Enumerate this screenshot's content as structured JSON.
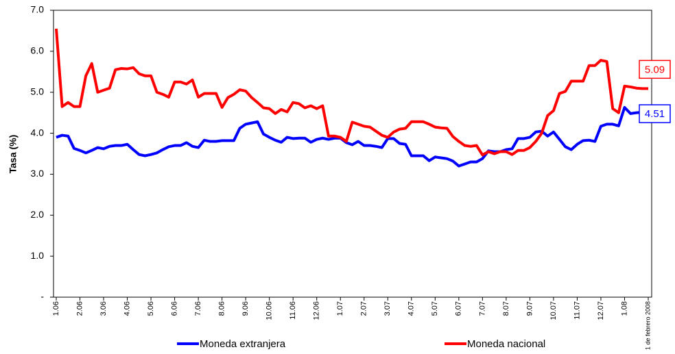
{
  "chart_data": {
    "type": "line",
    "y_label": "Tasa (%)",
    "categories": [
      "1.06",
      null,
      null,
      null,
      "2.06",
      null,
      null,
      null,
      "3.06",
      null,
      null,
      null,
      "4.06",
      null,
      null,
      null,
      "5.06",
      null,
      null,
      null,
      "6.06",
      null,
      null,
      null,
      "7.06",
      null,
      null,
      null,
      "8.06",
      null,
      null,
      null,
      "9.06",
      null,
      null,
      null,
      "10.06",
      null,
      null,
      null,
      "11.06",
      null,
      null,
      null,
      "12.06",
      null,
      null,
      null,
      "1.07",
      null,
      null,
      null,
      "2.07",
      null,
      null,
      null,
      "3.07",
      null,
      null,
      null,
      "4.07",
      null,
      null,
      null,
      "5.07",
      null,
      null,
      null,
      "6.07",
      null,
      null,
      null,
      "7.07",
      null,
      null,
      null,
      "8.07",
      null,
      null,
      null,
      "9.07",
      null,
      null,
      null,
      "10.07",
      null,
      null,
      null,
      "11.07",
      null,
      null,
      null,
      "12.07",
      null,
      null,
      null,
      "1.08",
      null,
      null,
      null,
      "1 de febrero 2008"
    ],
    "series": [
      {
        "name": "Moneda extranjera",
        "color": "#0000ff",
        "values": [
          3.9,
          3.95,
          3.93,
          3.63,
          3.58,
          3.52,
          3.58,
          3.65,
          3.62,
          3.68,
          3.7,
          3.7,
          3.73,
          3.6,
          3.48,
          3.45,
          3.48,
          3.52,
          3.6,
          3.67,
          3.7,
          3.7,
          3.77,
          3.68,
          3.65,
          3.83,
          3.8,
          3.8,
          3.82,
          3.82,
          3.82,
          4.12,
          4.22,
          4.25,
          4.28,
          3.98,
          3.9,
          3.83,
          3.78,
          3.9,
          3.87,
          3.88,
          3.88,
          3.78,
          3.85,
          3.88,
          3.85,
          3.88,
          3.88,
          3.77,
          3.72,
          3.8,
          3.7,
          3.7,
          3.68,
          3.65,
          3.87,
          3.87,
          3.75,
          3.73,
          3.45,
          3.45,
          3.45,
          3.33,
          3.42,
          3.4,
          3.38,
          3.32,
          3.2,
          3.25,
          3.3,
          3.3,
          3.38,
          3.57,
          3.55,
          3.55,
          3.6,
          3.62,
          3.87,
          3.87,
          3.9,
          4.03,
          4.05,
          3.93,
          4.03,
          3.85,
          3.67,
          3.6,
          3.73,
          3.82,
          3.83,
          3.8,
          4.17,
          4.22,
          4.22,
          4.18,
          4.63,
          4.48,
          4.5,
          4.51,
          4.51
        ]
      },
      {
        "name": "Moneda nacional",
        "color": "#ff0000",
        "values": [
          6.55,
          4.65,
          4.75,
          4.65,
          4.65,
          5.4,
          5.7,
          5.0,
          5.05,
          5.1,
          5.55,
          5.58,
          5.57,
          5.6,
          5.45,
          5.4,
          5.4,
          5.0,
          4.95,
          4.88,
          5.25,
          5.25,
          5.2,
          5.3,
          4.88,
          4.97,
          4.97,
          4.97,
          4.63,
          4.87,
          4.95,
          5.06,
          5.03,
          4.87,
          4.75,
          4.62,
          4.6,
          4.48,
          4.58,
          4.52,
          4.75,
          4.72,
          4.62,
          4.67,
          4.6,
          4.67,
          3.93,
          3.93,
          3.9,
          3.8,
          4.27,
          4.22,
          4.17,
          4.15,
          4.05,
          3.95,
          3.9,
          4.03,
          4.1,
          4.12,
          4.28,
          4.28,
          4.28,
          4.22,
          4.15,
          4.13,
          4.12,
          3.92,
          3.8,
          3.7,
          3.68,
          3.7,
          3.47,
          3.55,
          3.5,
          3.55,
          3.55,
          3.48,
          3.58,
          3.58,
          3.65,
          3.8,
          4.0,
          4.43,
          4.55,
          4.97,
          5.02,
          5.27,
          5.27,
          5.27,
          5.65,
          5.65,
          5.78,
          5.75,
          4.6,
          4.5,
          5.15,
          5.13,
          5.1,
          5.09,
          5.09
        ]
      }
    ],
    "ylim": [
      0,
      7
    ],
    "yticks": [
      {
        "value": 0,
        "label": "-"
      },
      {
        "value": 1,
        "label": "1.0"
      },
      {
        "value": 2,
        "label": "2.0"
      },
      {
        "value": 3,
        "label": "3.0"
      },
      {
        "value": 4,
        "label": "4.0"
      },
      {
        "value": 5,
        "label": "5.0"
      },
      {
        "value": 6,
        "label": "6.0"
      },
      {
        "value": 7,
        "label": "7.0"
      }
    ],
    "grid": false,
    "legend": "bottom"
  }
}
